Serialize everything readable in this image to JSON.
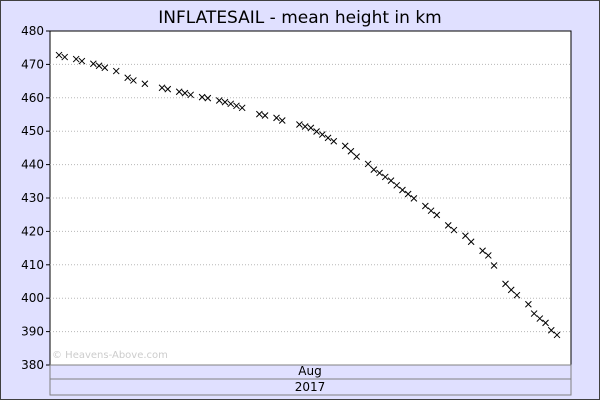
{
  "chart_data": {
    "type": "scatter",
    "title": "INFLATESAIL - mean height in km",
    "xlabel": "",
    "ylabel": "",
    "ylim": [
      380,
      480
    ],
    "yticks": [
      380,
      390,
      400,
      410,
      420,
      430,
      440,
      450,
      460,
      470,
      480
    ],
    "x_period_label": "Aug",
    "x_year_label": "2017",
    "watermark": "© Heavens-Above.com",
    "grid": true,
    "colors": {
      "plot_bg": "#ffffff",
      "outer_bg": "#e0e0ff",
      "marker": "#000000",
      "grid": "#b8b8b8"
    },
    "series": [
      {
        "marker": "x",
        "points": [
          [
            "2017-07-06",
            472.8
          ],
          [
            "2017-07-07",
            472.2
          ],
          [
            "2017-07-09",
            471.6
          ],
          [
            "2017-07-10",
            471.0
          ],
          [
            "2017-07-12",
            470.2
          ],
          [
            "2017-07-13",
            469.6
          ],
          [
            "2017-07-14",
            469.0
          ],
          [
            "2017-07-16",
            468.0
          ],
          [
            "2017-07-18",
            466.0
          ],
          [
            "2017-07-19",
            465.2
          ],
          [
            "2017-07-21",
            464.2
          ],
          [
            "2017-07-24",
            463.0
          ],
          [
            "2017-07-25",
            462.6
          ],
          [
            "2017-07-27",
            461.8
          ],
          [
            "2017-07-28",
            461.4
          ],
          [
            "2017-07-29",
            460.9
          ],
          [
            "2017-07-31",
            460.2
          ],
          [
            "2017-08-01",
            459.9
          ],
          [
            "2017-08-03",
            459.2
          ],
          [
            "2017-08-04",
            458.7
          ],
          [
            "2017-08-05",
            458.2
          ],
          [
            "2017-08-06",
            457.6
          ],
          [
            "2017-08-07",
            457.0
          ],
          [
            "2017-08-10",
            455.1
          ],
          [
            "2017-08-11",
            454.7
          ],
          [
            "2017-08-13",
            454.0
          ],
          [
            "2017-08-14",
            453.2
          ],
          [
            "2017-08-17",
            452.0
          ],
          [
            "2017-08-18",
            451.4
          ],
          [
            "2017-08-19",
            451.0
          ],
          [
            "2017-08-20",
            449.9
          ],
          [
            "2017-08-21",
            449.0
          ],
          [
            "2017-08-22",
            448.0
          ],
          [
            "2017-08-23",
            447.0
          ],
          [
            "2017-08-25",
            445.6
          ],
          [
            "2017-08-26",
            444.0
          ],
          [
            "2017-08-27",
            442.4
          ],
          [
            "2017-08-29",
            440.2
          ],
          [
            "2017-08-30",
            438.5
          ],
          [
            "2017-08-31",
            437.5
          ],
          [
            "2017-09-01",
            436.3
          ],
          [
            "2017-09-02",
            435.2
          ],
          [
            "2017-09-03",
            433.8
          ],
          [
            "2017-09-04",
            432.4
          ],
          [
            "2017-09-05",
            431.2
          ],
          [
            "2017-09-06",
            429.9
          ],
          [
            "2017-09-08",
            427.6
          ],
          [
            "2017-09-09",
            426.2
          ],
          [
            "2017-09-10",
            424.9
          ],
          [
            "2017-09-12",
            421.8
          ],
          [
            "2017-09-13",
            420.4
          ],
          [
            "2017-09-15",
            418.7
          ],
          [
            "2017-09-16",
            416.9
          ],
          [
            "2017-09-18",
            414.2
          ],
          [
            "2017-09-19",
            412.8
          ],
          [
            "2017-09-20",
            409.8
          ],
          [
            "2017-09-22",
            404.3
          ],
          [
            "2017-09-23",
            402.5
          ],
          [
            "2017-09-24",
            400.9
          ],
          [
            "2017-09-26",
            398.2
          ],
          [
            "2017-09-27",
            395.4
          ],
          [
            "2017-09-28",
            393.9
          ],
          [
            "2017-09-29",
            392.6
          ],
          [
            "2017-09-30",
            390.4
          ],
          [
            "2017-10-01",
            389.0
          ]
        ]
      }
    ]
  }
}
